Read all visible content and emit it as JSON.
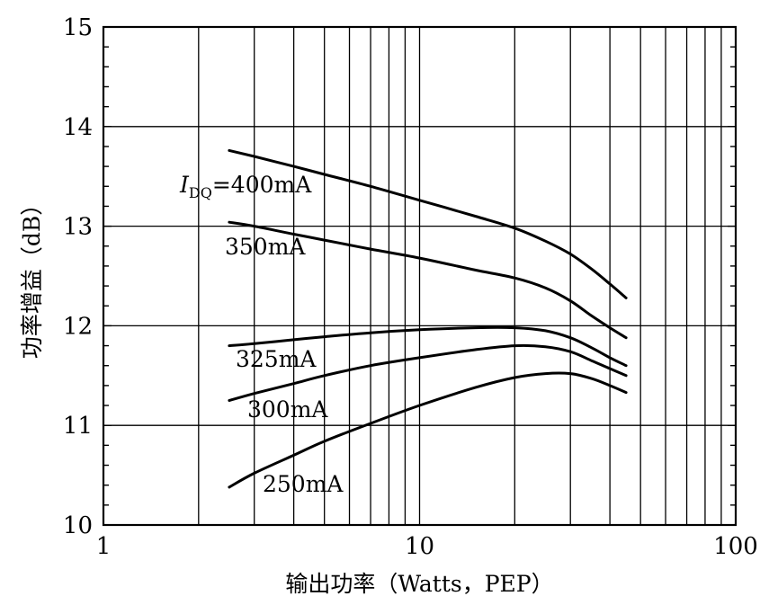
{
  "chart_data": {
    "type": "line",
    "xlabel": "输出功率（Watts，PEP）",
    "ylabel": "功率增益（dB）",
    "x_scale": "log",
    "xlim": [
      1,
      100
    ],
    "ylim": [
      10,
      15
    ],
    "x_ticks": [
      1,
      10,
      100
    ],
    "y_ticks": [
      10,
      11,
      12,
      13,
      14,
      15
    ],
    "grid": true,
    "series": [
      {
        "name": "I_DQ=400mA",
        "label_main": "I",
        "label_sub": "DQ",
        "label_rest": "=400mA",
        "x": [
          2.5,
          3,
          4,
          5,
          7,
          10,
          15,
          20,
          25,
          30,
          35,
          40,
          45
        ],
        "y": [
          13.76,
          13.7,
          13.6,
          13.52,
          13.4,
          13.26,
          13.1,
          12.98,
          12.85,
          12.72,
          12.57,
          12.42,
          12.28
        ]
      },
      {
        "name": "350mA",
        "x": [
          2.5,
          3,
          4,
          5,
          7,
          10,
          15,
          20,
          25,
          30,
          35,
          40,
          45
        ],
        "y": [
          13.04,
          13.0,
          12.92,
          12.86,
          12.77,
          12.68,
          12.56,
          12.48,
          12.38,
          12.25,
          12.1,
          11.98,
          11.88
        ]
      },
      {
        "name": "325mA",
        "x": [
          2.5,
          3,
          4,
          5,
          7,
          10,
          15,
          20,
          25,
          30,
          35,
          40,
          45
        ],
        "y": [
          11.8,
          11.82,
          11.86,
          11.89,
          11.93,
          11.96,
          11.98,
          11.98,
          11.95,
          11.88,
          11.78,
          11.68,
          11.6
        ]
      },
      {
        "name": "300mA",
        "x": [
          2.5,
          3,
          4,
          5,
          7,
          10,
          15,
          20,
          25,
          30,
          35,
          40,
          45
        ],
        "y": [
          11.25,
          11.32,
          11.42,
          11.5,
          11.6,
          11.68,
          11.76,
          11.8,
          11.79,
          11.74,
          11.65,
          11.57,
          11.5
        ]
      },
      {
        "name": "250mA",
        "x": [
          2.5,
          3,
          4,
          5,
          7,
          10,
          15,
          20,
          25,
          30,
          35,
          40,
          45
        ],
        "y": [
          10.38,
          10.52,
          10.7,
          10.84,
          11.02,
          11.2,
          11.38,
          11.48,
          11.52,
          11.52,
          11.47,
          11.4,
          11.33
        ]
      }
    ]
  }
}
